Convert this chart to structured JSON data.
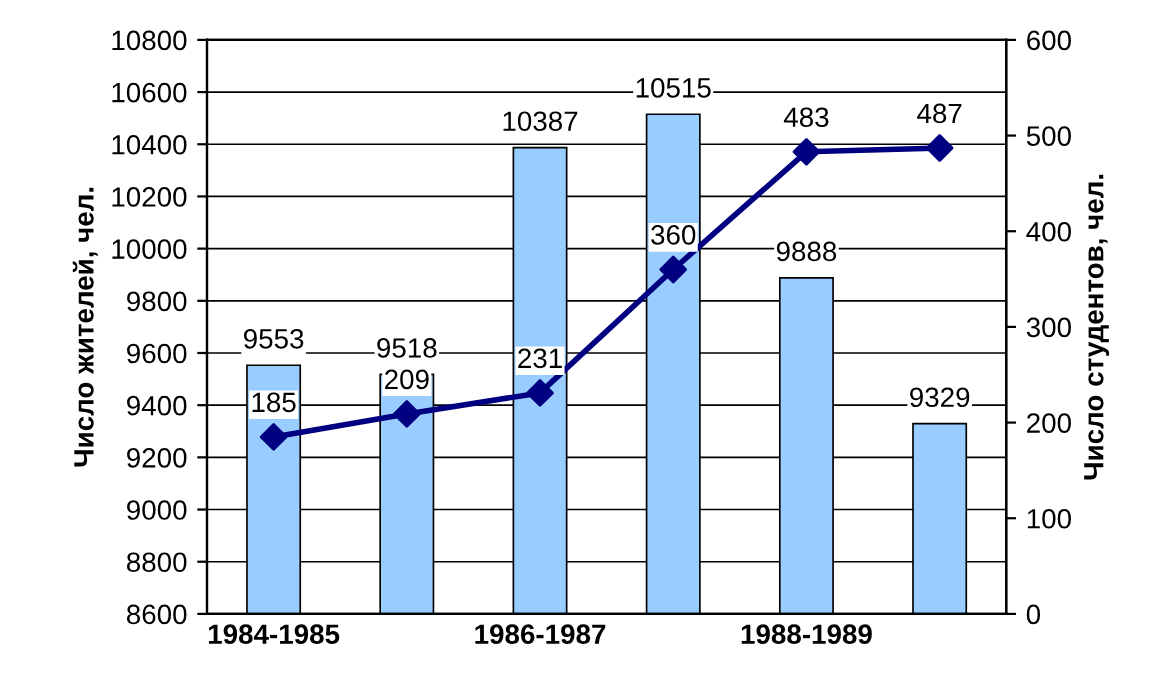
{
  "chart_data": {
    "type": "bar",
    "categories": [
      "1984-1985",
      null,
      "1986-1987",
      null,
      "1988-1989",
      null
    ],
    "ylabel": "Число жителей, чел.",
    "y2label": "Число студентов, чел.",
    "ylim": [
      8600,
      10800
    ],
    "yticks": [
      8600,
      8800,
      9000,
      9200,
      9400,
      9600,
      9800,
      10000,
      10200,
      10400,
      10600,
      10800
    ],
    "y2lim": [
      0,
      600
    ],
    "y2ticks": [
      0,
      100,
      200,
      300,
      400,
      500,
      600
    ],
    "grid": "y",
    "data_labels": true,
    "legend": false,
    "series": [
      {
        "color": "#99ccff",
        "values": [
          9553,
          9518,
          10387,
          10515,
          9888,
          9329
        ]
      },
      {
        "type": "line",
        "axis": "y2",
        "color": "#000080",
        "marker": "diamond",
        "line_style": "solid",
        "values": [
          185,
          209,
          231,
          360,
          483,
          487
        ]
      }
    ]
  }
}
